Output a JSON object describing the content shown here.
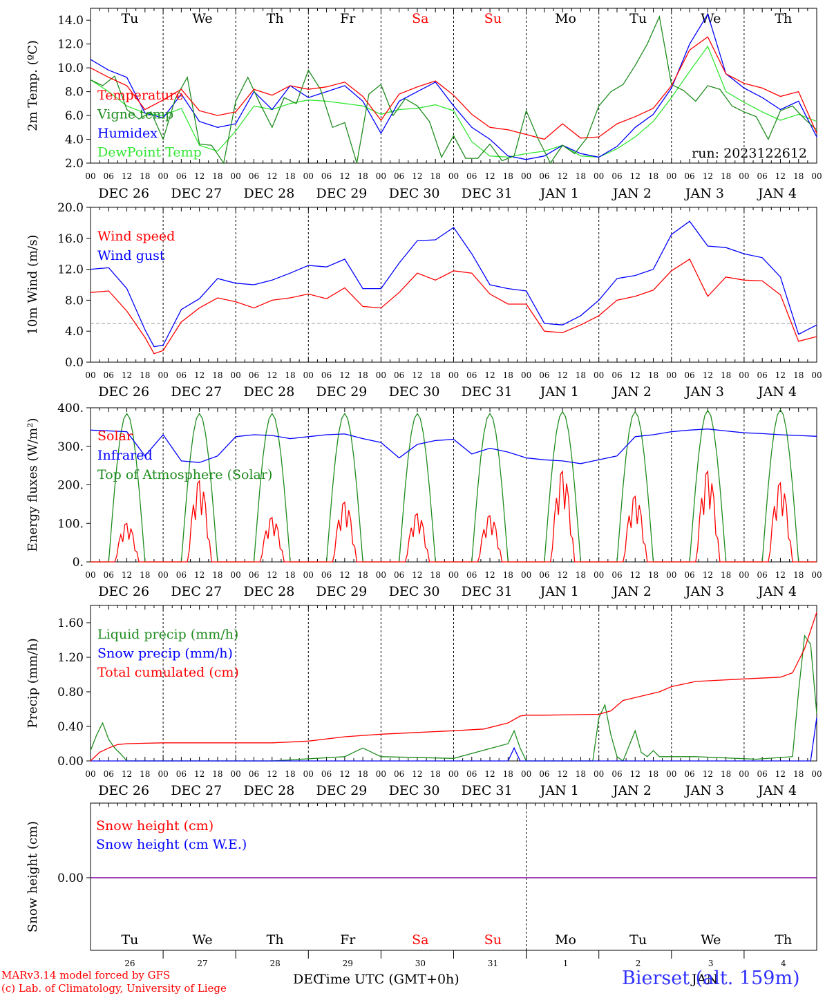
{
  "footer": {
    "credit_line1": "MARv3.14 model forced by GFS",
    "credit_line2": "(c) Lab. of Climatology, University of Liege",
    "xlabel": "Time UTC (GMT+0h)",
    "dec_label": "DEC",
    "jan_label": "JAN",
    "station": "Bierset (alt. 159m)"
  },
  "run_label": "run: 2023122612",
  "days": {
    "weekday_labels": [
      "Tu",
      "We",
      "Th",
      "Fr",
      "Sa",
      "Su",
      "Mo",
      "Tu",
      "We",
      "Th"
    ],
    "weekend_flags": [
      false,
      false,
      false,
      false,
      true,
      true,
      false,
      false,
      false,
      false
    ],
    "date_labels": [
      "DEC 26",
      "DEC 27",
      "DEC 28",
      "DEC 29",
      "DEC 30",
      "DEC 31",
      "JAN  1",
      "JAN  2",
      "JAN  3",
      "JAN  4"
    ],
    "day_numbers": [
      "26",
      "27",
      "28",
      "29",
      "30",
      "31",
      "1",
      "2",
      "3",
      "4"
    ],
    "hour_ticks": [
      "00",
      "06",
      "12",
      "18"
    ],
    "final_hour": "00"
  },
  "colors": {
    "red": "#ff0000",
    "darkgreen": "#1e8c1e",
    "blue": "#0000ff",
    "lightgreen": "#33e633",
    "grey": "#999999",
    "purple": "#8000a0"
  },
  "chart_data": [
    {
      "type": "line",
      "ylabel": "2m Temp. (ºC)",
      "ylim": [
        2,
        15
      ],
      "yticks": [
        "14.0",
        "12.0",
        "10.0",
        "8.0",
        "6.0",
        "4.0",
        "2.0"
      ],
      "x": "hours since Dec 26 00 UTC",
      "series": [
        {
          "name": "Temperature",
          "color": "#ff0000",
          "x": [
            0,
            6,
            12,
            18,
            24,
            30,
            36,
            42,
            48,
            54,
            60,
            66,
            72,
            78,
            84,
            90,
            96,
            102,
            108,
            114,
            120,
            126,
            132,
            138,
            144,
            150,
            156,
            162,
            168,
            174,
            180,
            186,
            192,
            198,
            204,
            210,
            216,
            222,
            228,
            234,
            240
          ],
          "y": [
            10,
            9.2,
            8.5,
            6.5,
            7.3,
            8.2,
            6.4,
            6,
            6.3,
            8.2,
            7.7,
            8.5,
            8.2,
            8.4,
            8.8,
            7.6,
            5.6,
            7.8,
            8.4,
            8.9,
            7.7,
            6.1,
            5,
            4.8,
            4.4,
            4,
            5.3,
            4.1,
            4.2,
            5.3,
            5.9,
            6.6,
            8.5,
            11.5,
            12.6,
            9.5,
            8.7,
            8.3,
            7.6,
            8,
            4.5
          ]
        },
        {
          "name": "Vigne temp",
          "color": "#1e8c1e",
          "x": [
            0,
            4,
            8,
            12,
            16,
            20,
            24,
            28,
            32,
            36,
            40,
            44,
            48,
            52,
            56,
            60,
            64,
            68,
            72,
            76,
            80,
            84,
            88,
            92,
            96,
            100,
            104,
            108,
            112,
            116,
            120,
            124,
            128,
            132,
            136,
            140,
            144,
            148,
            152,
            156,
            160,
            164,
            168,
            172,
            176,
            180,
            184,
            188,
            192,
            196,
            200,
            204,
            208,
            212,
            216,
            220,
            224,
            228,
            232,
            236,
            240
          ],
          "y": [
            9,
            8.5,
            9.3,
            6.5,
            5.7,
            6.3,
            4,
            7.4,
            9.2,
            3.6,
            3.5,
            2,
            7.2,
            9.2,
            7,
            5,
            7.5,
            7,
            9.8,
            8.2,
            5,
            5.4,
            1.8,
            7.8,
            8.6,
            6,
            7.4,
            6.8,
            5.5,
            2.5,
            4.3,
            2.4,
            2.4,
            3.6,
            2.2,
            2.6,
            6.4,
            4,
            2,
            3.5,
            2.8,
            4.1,
            6.8,
            8,
            8.6,
            10.2,
            12,
            14.3,
            8.6,
            8.1,
            7.2,
            8.5,
            8.2,
            6.8,
            6.3,
            5.9,
            4,
            6.4,
            6.8,
            5.7,
            4.8
          ]
        },
        {
          "name": "Humidex",
          "color": "#0000ff",
          "x": [
            0,
            6,
            12,
            18,
            24,
            30,
            36,
            42,
            48,
            54,
            60,
            66,
            72,
            78,
            84,
            90,
            96,
            102,
            108,
            114,
            120,
            126,
            132,
            138,
            144,
            150,
            156,
            162,
            168,
            174,
            180,
            186,
            192,
            198,
            204,
            210,
            216,
            222,
            228,
            234,
            240
          ],
          "y": [
            10.7,
            9.8,
            9.2,
            6.2,
            5.8,
            7.8,
            5.5,
            5,
            5.3,
            8,
            6.5,
            8.5,
            7.5,
            8,
            8.5,
            7.2,
            4.5,
            7.2,
            8,
            8.8,
            6.8,
            5,
            4,
            2.6,
            2.3,
            2.6,
            3.5,
            2.8,
            2.5,
            3.4,
            5,
            6.1,
            8.3,
            12,
            14.5,
            9.5,
            8.3,
            7.5,
            6.5,
            7.2,
            4.2
          ]
        },
        {
          "name": "DewPoint Temp",
          "color": "#33e633",
          "x": [
            0,
            6,
            12,
            18,
            24,
            30,
            36,
            42,
            48,
            54,
            60,
            66,
            72,
            78,
            84,
            90,
            96,
            102,
            108,
            114,
            120,
            126,
            132,
            138,
            144,
            150,
            156,
            162,
            168,
            174,
            180,
            186,
            192,
            198,
            204,
            210,
            216,
            222,
            228,
            234,
            240
          ],
          "y": [
            9,
            8,
            6.8,
            6.2,
            6,
            6.6,
            3.5,
            3,
            4.7,
            6.8,
            6.5,
            7,
            7.3,
            7.2,
            7,
            6.8,
            6.1,
            6.5,
            6.6,
            6.9,
            6.4,
            3.8,
            2.6,
            2.5,
            2.8,
            3,
            3.5,
            2.6,
            2.5,
            3.2,
            4.2,
            5.5,
            7.5,
            9.7,
            11.8,
            8,
            7.1,
            6.3,
            5.6,
            6.1,
            5.5
          ]
        }
      ]
    },
    {
      "type": "line",
      "ylabel": "10m Wind (m/s)",
      "ylim": [
        0,
        20
      ],
      "yticks": [
        "20.0",
        "16.0",
        "12.0",
        "8.0",
        "4.0",
        "0.0"
      ],
      "reference_line": 5,
      "series": [
        {
          "name": "Wind speed",
          "color": "#ff0000",
          "x": [
            0,
            6,
            12,
            18,
            21,
            24,
            30,
            36,
            42,
            48,
            54,
            60,
            66,
            72,
            78,
            84,
            90,
            96,
            102,
            108,
            114,
            120,
            126,
            132,
            138,
            144,
            150,
            156,
            162,
            168,
            174,
            180,
            186,
            192,
            198,
            204,
            210,
            216,
            222,
            228,
            234,
            240
          ],
          "y": [
            9,
            9.2,
            6.6,
            3.2,
            1.1,
            1.5,
            5.2,
            7,
            8.3,
            7.8,
            7,
            8,
            8.3,
            8.8,
            8.2,
            9.6,
            7.2,
            7,
            9,
            11.5,
            10.6,
            11.8,
            11.5,
            8.8,
            7.5,
            7.5,
            4,
            3.8,
            4.8,
            6,
            8,
            8.5,
            9.3,
            11.8,
            13.3,
            8.5,
            11,
            10.6,
            10.5,
            8.7,
            2.7,
            3.3
          ]
        },
        {
          "name": "Wind gust",
          "color": "#0000ff",
          "x": [
            0,
            6,
            12,
            18,
            21,
            24,
            30,
            36,
            42,
            48,
            54,
            60,
            66,
            72,
            78,
            84,
            90,
            96,
            102,
            108,
            114,
            120,
            126,
            132,
            138,
            144,
            150,
            156,
            162,
            168,
            174,
            180,
            186,
            192,
            198,
            204,
            210,
            216,
            222,
            228,
            234,
            240
          ],
          "y": [
            12,
            12.2,
            9.5,
            4.2,
            2,
            2.2,
            6.8,
            8.2,
            10.8,
            10.2,
            10,
            10.6,
            11.5,
            12.5,
            12.3,
            13.3,
            9.5,
            9.5,
            12.8,
            15.7,
            15.8,
            17.4,
            14,
            10,
            9.5,
            9.2,
            5,
            4.8,
            6,
            8,
            10.8,
            11.2,
            12,
            16.5,
            18.2,
            15,
            14.8,
            14,
            13.5,
            11,
            3.6,
            4.8
          ]
        }
      ]
    },
    {
      "type": "line",
      "ylabel": "Energy fluxes (W/m²)",
      "ylim": [
        0,
        400
      ],
      "yticks": [
        "400.",
        "300.",
        "200.",
        "100.",
        "0."
      ],
      "series": [
        {
          "name": "Solar",
          "color": "#ff0000",
          "daily_peaks": [
            100,
            210,
            115,
            155,
            125,
            120,
            235,
            170,
            235,
            205
          ]
        },
        {
          "name": "Infrared",
          "color": "#0000ff",
          "x": [
            0,
            12,
            18,
            24,
            30,
            36,
            42,
            48,
            54,
            60,
            66,
            72,
            78,
            84,
            90,
            96,
            102,
            108,
            114,
            120,
            126,
            132,
            138,
            144,
            150,
            156,
            162,
            168,
            174,
            180,
            186,
            192,
            198,
            204,
            210,
            216,
            222,
            228,
            234,
            240
          ],
          "y": [
            342,
            338,
            275,
            330,
            262,
            258,
            275,
            325,
            330,
            328,
            320,
            325,
            330,
            332,
            320,
            310,
            270,
            305,
            315,
            318,
            280,
            295,
            285,
            270,
            265,
            262,
            255,
            265,
            275,
            325,
            330,
            338,
            342,
            345,
            340,
            335,
            333,
            330,
            328,
            326
          ]
        },
        {
          "name": "Top of Atmosphere (Solar)",
          "color": "#1e8c1e",
          "daily_peaks": [
            385,
            385,
            385,
            385,
            385,
            385,
            390,
            390,
            393,
            395
          ]
        }
      ]
    },
    {
      "type": "line",
      "ylabel": "Precip (mm/h)",
      "ylim": [
        0,
        1.8
      ],
      "yticks": [
        "1.60",
        "1.20",
        "0.80",
        "0.40",
        "0.00"
      ],
      "series": [
        {
          "name": "Liquid precip (mm/h)",
          "color": "#1e8c1e",
          "x": [
            0,
            2,
            4,
            6,
            8,
            10,
            12,
            30,
            60,
            84,
            90,
            96,
            120,
            138,
            140,
            142,
            144,
            148,
            166,
            168,
            170,
            172,
            174,
            176,
            180,
            182,
            184,
            186,
            188,
            200,
            220,
            232,
            234,
            236,
            238,
            240
          ],
          "y": [
            0.12,
            0.3,
            0.44,
            0.25,
            0.15,
            0.08,
            0,
            0,
            0,
            0.05,
            0.15,
            0.05,
            0.03,
            0.2,
            0.35,
            0.15,
            0,
            0,
            0,
            0.5,
            0.65,
            0.3,
            0.05,
            0,
            0.35,
            0.1,
            0.05,
            0.12,
            0.05,
            0.05,
            0.02,
            0.05,
            0.8,
            1.45,
            1.35,
            0.55
          ]
        },
        {
          "name": "Snow precip (mm/h)",
          "color": "#0000ff",
          "x": [
            0,
            138,
            140,
            142,
            144,
            238,
            240
          ],
          "y": [
            0,
            0,
            0.15,
            0,
            0,
            0,
            0.5
          ]
        },
        {
          "name": "Total cumulated (cm)",
          "color": "#ff0000",
          "x": [
            0,
            3,
            6,
            9,
            12,
            24,
            48,
            60,
            72,
            84,
            96,
            108,
            120,
            130,
            138,
            142,
            144,
            150,
            168,
            172,
            176,
            182,
            188,
            192,
            200,
            216,
            228,
            232,
            236,
            240
          ],
          "y": [
            0,
            0.1,
            0.15,
            0.19,
            0.2,
            0.21,
            0.21,
            0.21,
            0.23,
            0.28,
            0.31,
            0.33,
            0.35,
            0.37,
            0.44,
            0.52,
            0.53,
            0.53,
            0.54,
            0.58,
            0.7,
            0.75,
            0.8,
            0.86,
            0.92,
            0.95,
            0.97,
            1.02,
            1.3,
            1.72
          ]
        }
      ]
    },
    {
      "type": "line",
      "ylabel": "Snow height (cm)",
      "yticks": [
        "0.00"
      ],
      "series": [
        {
          "name": "Snow height (cm)",
          "color": "#ff0000",
          "x": [
            0,
            240
          ],
          "y": [
            0,
            0
          ]
        },
        {
          "name": "Snow height (cm W.E.)",
          "color": "#0000ff",
          "x": [
            0,
            240
          ],
          "y": [
            0,
            0
          ]
        }
      ]
    }
  ]
}
